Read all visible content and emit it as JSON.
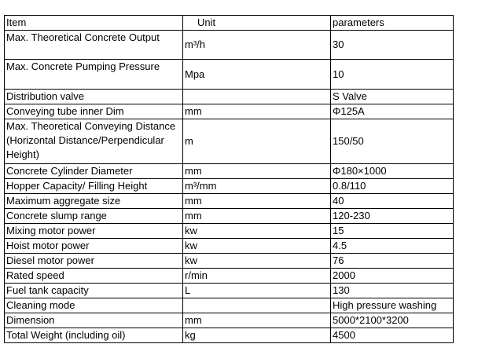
{
  "table": {
    "header": [
      "Item",
      "Unit",
      "parameters"
    ],
    "rows": [
      [
        "Max. Theoretical Concrete Output",
        "m³/h",
        "30"
      ],
      [
        "Max. Concrete Pumping Pressure",
        "Mpa",
        "10"
      ],
      [
        "Distribution valve",
        null,
        "S Valve"
      ],
      [
        "Conveying tube inner Dim",
        "mm",
        "Φ125A"
      ],
      [
        "Max. Theoretical Conveying Distance (Horizontal Distance/Perpendicular Height)",
        "m",
        "150/50"
      ],
      [
        "Concrete Cylinder Diameter",
        "mm",
        "Φ180×1000"
      ],
      [
        "Hopper Capacity/ Filling Height",
        "m³/mm",
        "0.8/110"
      ],
      [
        "Maximum aggregate size",
        "mm",
        "40"
      ],
      [
        "Concrete slump range",
        "mm",
        "120-230"
      ],
      [
        "Mixing motor power",
        "kw",
        "15"
      ],
      [
        "Hoist motor power",
        "kw",
        "4.5"
      ],
      [
        "Diesel motor power",
        "kw",
        "76"
      ],
      [
        "Rated speed",
        "r/min",
        "2000"
      ],
      [
        "Fuel tank capacity",
        "L",
        "130"
      ],
      [
        "Cleaning mode",
        null,
        "High pressure washing"
      ],
      [
        "Dimension",
        "mm",
        "5000*2100*3200"
      ],
      [
        "Total Weight (including oil)",
        "kg",
        "4500"
      ]
    ]
  }
}
